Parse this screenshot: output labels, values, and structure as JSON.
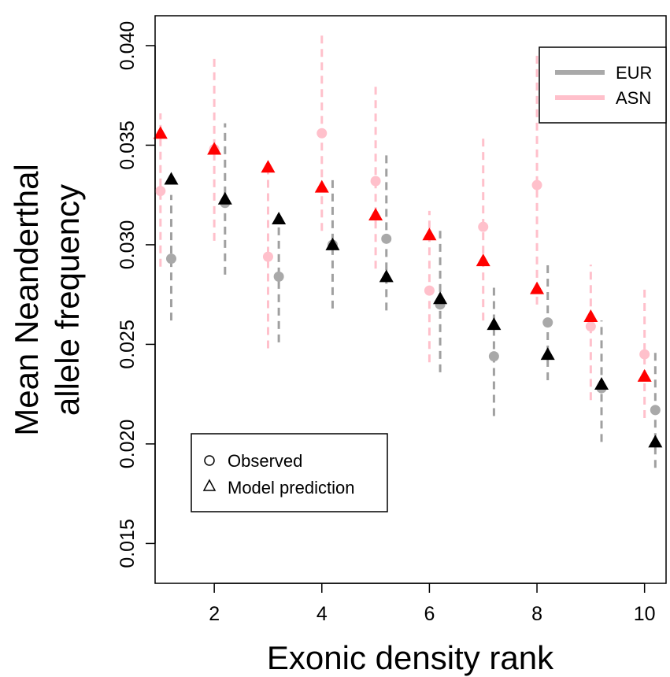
{
  "chart_data": {
    "type": "scatter",
    "title": "",
    "xlabel": "Exonic density rank",
    "ylabel_lines": [
      "Mean Neanderthal",
      "allele frequency"
    ],
    "xlim": [
      0.9,
      10.4
    ],
    "ylim": [
      0.013,
      0.0415
    ],
    "x_ticks": [
      2,
      4,
      6,
      8,
      10
    ],
    "x_tick_labels": [
      "2",
      "4",
      "6",
      "8",
      "10"
    ],
    "y_ticks": [
      0.015,
      0.02,
      0.025,
      0.03,
      0.035,
      0.04
    ],
    "y_tick_labels": [
      "0.015",
      "0.020",
      "0.025",
      "0.030",
      "0.035",
      "0.040"
    ],
    "x": [
      1,
      2,
      3,
      4,
      5,
      6,
      7,
      8,
      9,
      10
    ],
    "series": [
      {
        "name": "EUR",
        "color": "#a9a9a9",
        "model_color": "#000000",
        "x_offset": 0.2,
        "observed": [
          0.0293,
          0.0321,
          0.0284,
          0.03,
          0.0303,
          0.027,
          0.0244,
          0.0261,
          0.0228,
          0.0217
        ],
        "model": [
          0.0333,
          0.0323,
          0.0313,
          0.03,
          0.0284,
          0.0273,
          0.026,
          0.0245,
          0.023,
          0.0201
        ],
        "ci_low": [
          0.0262,
          0.0285,
          0.0251,
          0.0268,
          0.0267,
          0.0236,
          0.0214,
          0.0232,
          0.0201,
          0.0188
        ],
        "ci_high": [
          0.0325,
          0.0361,
          0.0318,
          0.0334,
          0.0347,
          0.0307,
          0.0279,
          0.029,
          0.0262,
          0.0246
        ]
      },
      {
        "name": "ASN",
        "color": "#ffc0cb",
        "model_color": "#ff0000",
        "x_offset": 0.0,
        "observed": [
          0.0327,
          0.0348,
          0.0294,
          0.0356,
          0.0332,
          0.0277,
          0.0309,
          0.033,
          0.0259,
          0.0245
        ],
        "model": [
          0.0356,
          0.0348,
          0.0339,
          0.0329,
          0.0315,
          0.0305,
          0.0292,
          0.0278,
          0.0264,
          0.0234
        ],
        "ci_low": [
          0.0289,
          0.0302,
          0.0248,
          0.0307,
          0.0288,
          0.0241,
          0.0262,
          0.027,
          0.0222,
          0.0213
        ],
        "ci_high": [
          0.0366,
          0.0396,
          0.0338,
          0.0406,
          0.038,
          0.0317,
          0.0356,
          0.0395,
          0.029,
          0.028
        ]
      }
    ],
    "legend_color": {
      "position": "top-right",
      "entries": [
        {
          "label": "EUR",
          "color": "#a9a9a9"
        },
        {
          "label": "ASN",
          "color": "#ffc0cb"
        }
      ]
    },
    "legend_shape": {
      "position": "bottom-left",
      "entries": [
        {
          "label": "Observed",
          "symbol": "circle-open"
        },
        {
          "label": "Model prediction",
          "symbol": "triangle-open"
        }
      ]
    }
  }
}
